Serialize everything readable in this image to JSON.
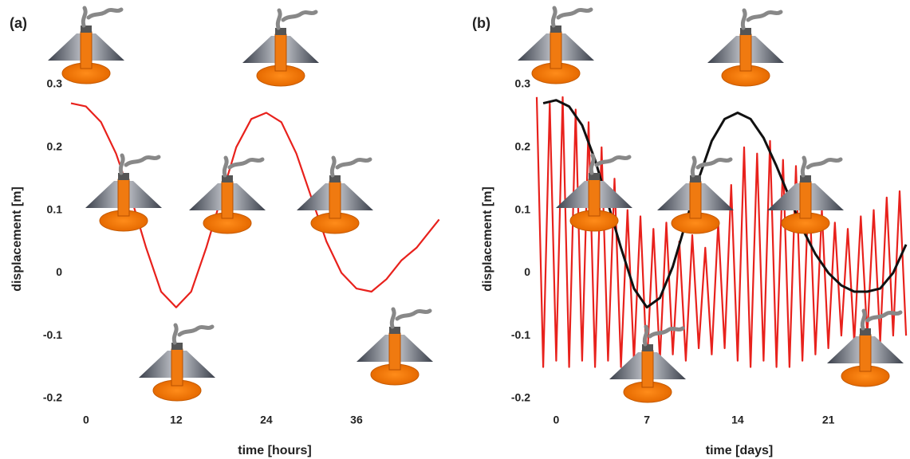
{
  "chart_data": [
    {
      "type": "line",
      "panel": "(a)",
      "xlabel": "time [hours]",
      "ylabel": "displacement [m]",
      "xlim": [
        -2,
        48
      ],
      "ylim": [
        -0.2,
        0.3
      ],
      "xticks": [
        0,
        12,
        24,
        36
      ],
      "yticks": [
        -0.2,
        -0.1,
        0,
        0.1,
        0.2,
        0.3
      ],
      "series": [
        {
          "color": "#e8211c",
          "x": [
            -2,
            0,
            2,
            4,
            6,
            8,
            10,
            12,
            14,
            16,
            18,
            20,
            22,
            24,
            26,
            28,
            30,
            32,
            34,
            36,
            38,
            40,
            42,
            44,
            46,
            47
          ],
          "values": [
            0.27,
            0.265,
            0.24,
            0.19,
            0.12,
            0.04,
            -0.03,
            -0.055,
            -0.03,
            0.04,
            0.12,
            0.2,
            0.245,
            0.255,
            0.24,
            0.19,
            0.12,
            0.05,
            0,
            -0.025,
            -0.03,
            -0.01,
            0.02,
            0.04,
            0.07,
            0.085
          ]
        }
      ]
    },
    {
      "type": "line",
      "panel": "(b)",
      "xlabel": "time [days]",
      "ylabel": "displacement [m]",
      "xlim": [
        -1.5,
        27.3
      ],
      "ylim": [
        -0.2,
        0.3
      ],
      "xticks": [
        0,
        7,
        14,
        21
      ],
      "yticks": [
        -0.2,
        -0.1,
        0,
        0.1,
        0.2,
        0.3
      ],
      "series": [
        {
          "color": "#e8211c",
          "x": [
            -1.5,
            -1,
            -0.5,
            0,
            0.5,
            1,
            1.5,
            2,
            2.5,
            3,
            3.5,
            4,
            4.5,
            5,
            5.5,
            6,
            6.5,
            7,
            7.5,
            8,
            8.5,
            9,
            9.5,
            10,
            10.5,
            11,
            11.5,
            12,
            12.5,
            13,
            13.5,
            14,
            14.5,
            15,
            15.5,
            16,
            16.5,
            17,
            17.5,
            18,
            18.5,
            19,
            19.5,
            20,
            20.5,
            21,
            21.5,
            22,
            22.5,
            23,
            23.5,
            24,
            24.5,
            25,
            25.5,
            26,
            26.5,
            27
          ],
          "values": [
            0.28,
            -0.15,
            0.27,
            -0.14,
            0.28,
            -0.15,
            0.26,
            -0.14,
            0.24,
            -0.15,
            0.2,
            -0.14,
            0.15,
            -0.15,
            0.1,
            -0.14,
            0.09,
            -0.15,
            0.07,
            -0.14,
            0.08,
            -0.13,
            0.05,
            -0.14,
            0.06,
            -0.12,
            0.04,
            -0.13,
            0.08,
            -0.12,
            0.14,
            -0.14,
            0.2,
            -0.15,
            0.19,
            -0.14,
            0.21,
            -0.15,
            0.18,
            -0.15,
            0.17,
            -0.14,
            0.15,
            -0.13,
            0.1,
            -0.12,
            0.08,
            -0.1,
            0.07,
            -0.11,
            0.09,
            -0.1,
            0.1,
            -0.11,
            0.12,
            -0.1,
            0.13,
            -0.1
          ]
        },
        {
          "color": "#111111",
          "x": [
            -1,
            0,
            1,
            2,
            3,
            4,
            5,
            6,
            7,
            8,
            9,
            10,
            11,
            12,
            13,
            14,
            15,
            16,
            17,
            18,
            19,
            20,
            21,
            22,
            23,
            24,
            25,
            26,
            27
          ],
          "values": [
            0.27,
            0.275,
            0.265,
            0.235,
            0.18,
            0.11,
            0.04,
            -0.025,
            -0.055,
            -0.04,
            0.01,
            0.08,
            0.15,
            0.21,
            0.245,
            0.255,
            0.245,
            0.215,
            0.17,
            0.12,
            0.07,
            0.03,
            0,
            -0.02,
            -0.03,
            -0.03,
            -0.025,
            0,
            0.045
          ]
        }
      ]
    }
  ]
}
